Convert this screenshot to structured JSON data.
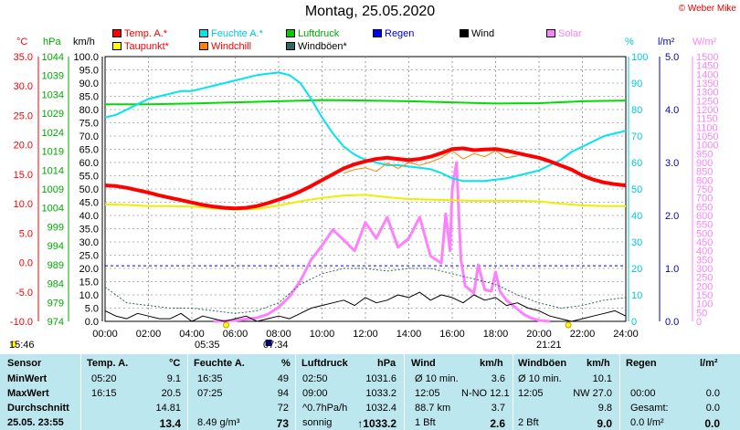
{
  "header": {
    "title": "Montag, 25.05.2020",
    "copyright": "© Weber Mike"
  },
  "legend": [
    {
      "label": "Temp. A.*",
      "color": "#ff0000",
      "col": 0,
      "row": 0
    },
    {
      "label": "Taupunkt*",
      "color": "#ffff00",
      "col": 0,
      "row": 1
    },
    {
      "label": "Feuchte A.*",
      "color": "#00e5ee",
      "col": 1,
      "row": 0
    },
    {
      "label": "Windchill",
      "color": "#ff8000",
      "col": 1,
      "row": 1
    },
    {
      "label": "Luftdruck",
      "color": "#00cc00",
      "col": 2,
      "row": 0
    },
    {
      "label": "Windböen*",
      "color": "#336666",
      "col": 2,
      "row": 1
    },
    {
      "label": "Regen",
      "color": "#0000ff",
      "col": 3,
      "row": 0
    },
    {
      "label": "Wind",
      "color": "#000000",
      "col": 4,
      "row": 0
    },
    {
      "label": "Solar",
      "color": "#ff80ff",
      "col": 5,
      "row": 0
    }
  ],
  "units": {
    "temp": "°C",
    "pressure": "hPa",
    "wind": "km/h",
    "humidity": "%",
    "rain": "l/m²",
    "solar": "W/m²"
  },
  "chart_data": {
    "type": "line",
    "x_ticks": [
      "00:00",
      "02:00",
      "04:00",
      "06:00",
      "08:00",
      "10:00",
      "12:00",
      "14:00",
      "16:00",
      "18:00",
      "20:00",
      "22:00",
      "24:00"
    ],
    "axes": {
      "temp": {
        "min": -10,
        "max": 35,
        "ticks": [
          "35.0",
          "30.0",
          "25.0",
          "20.0",
          "15.0",
          "10.0",
          "5.0",
          "0.0",
          "-5.0",
          "-10.0"
        ]
      },
      "pressure": {
        "min": 974,
        "max": 1044,
        "ticks": [
          "1044",
          "1039",
          "1034",
          "1029",
          "1024",
          "1019",
          "1014",
          "1009",
          "1004",
          "999",
          "994",
          "989",
          "984",
          "979",
          "974"
        ]
      },
      "wind": {
        "min": 0,
        "max": 100,
        "ticks": [
          "100.0",
          "95.0",
          "90.0",
          "85.0",
          "80.0",
          "75.0",
          "70.0",
          "65.0",
          "60.0",
          "55.0",
          "50.0",
          "45.0",
          "40.0",
          "35.0",
          "30.0",
          "25.0",
          "20.0",
          "15.0",
          "10.0",
          "5.0",
          "0.0"
        ]
      },
      "humidity": {
        "min": 0,
        "max": 100,
        "ticks": [
          "100",
          "90",
          "80",
          "70",
          "60",
          "50",
          "40",
          "30",
          "20",
          "10",
          "0"
        ]
      },
      "rain": {
        "min": 0,
        "max": 5,
        "ticks": [
          "5.0",
          "4.0",
          "3.0",
          "2.0",
          "1.0",
          "0.0"
        ]
      },
      "solar": {
        "min": 0,
        "max": 1500,
        "ticks": [
          "1500",
          "1450",
          "1400",
          "1350",
          "1300",
          "1250",
          "1200",
          "1150",
          "1100",
          "1050",
          "1000",
          "950",
          "900",
          "850",
          "800",
          "750",
          "700",
          "650",
          "600",
          "550",
          "500",
          "450",
          "400",
          "350",
          "300",
          "250",
          "200",
          "150",
          "100",
          "50",
          "0"
        ]
      }
    },
    "series": [
      {
        "name": "Feuchte A.*",
        "axis": "humidity",
        "color": "#00e5ee",
        "x": [
          0,
          0.5,
          1,
          1.5,
          2,
          2.5,
          3,
          3.5,
          4,
          4.5,
          5,
          5.5,
          6,
          6.5,
          7,
          7.5,
          8,
          8.5,
          9,
          9.5,
          10,
          10.5,
          11,
          11.5,
          12,
          12.5,
          13,
          13.5,
          14,
          14.5,
          15,
          15.5,
          16,
          16.5,
          17,
          17.5,
          18,
          18.5,
          19,
          19.5,
          20,
          20.5,
          21,
          21.5,
          22,
          22.5,
          23,
          23.5,
          24
        ],
        "y": [
          77,
          78,
          80,
          82,
          84,
          85,
          86,
          87,
          87,
          88,
          89,
          90,
          91,
          92,
          93,
          93.5,
          94,
          93,
          90,
          84,
          77,
          71,
          66,
          63,
          61,
          60,
          59,
          59,
          58.5,
          58,
          57.5,
          56,
          54,
          53,
          53,
          53,
          53.5,
          54,
          55,
          56,
          57,
          59,
          61,
          64,
          66,
          68,
          70,
          71,
          72
        ]
      },
      {
        "name": "Luftdruck",
        "axis": "pressure",
        "color": "#00dd00",
        "x": [
          0,
          2,
          4,
          6,
          8,
          10,
          12,
          14,
          16,
          18,
          20,
          22,
          24
        ],
        "y": [
          1031.4,
          1031.4,
          1031.6,
          1031.9,
          1032.2,
          1032.5,
          1032.4,
          1032.2,
          1031.9,
          1031.6,
          1031.7,
          1032.2,
          1032.4
        ]
      },
      {
        "name": "Temp. A.*",
        "axis": "temp",
        "color": "#ff0000",
        "x": [
          0,
          0.5,
          1,
          1.5,
          2,
          2.5,
          3,
          3.5,
          4,
          4.5,
          5,
          5.5,
          6,
          6.5,
          7,
          7.5,
          8,
          8.5,
          9,
          9.5,
          10,
          10.5,
          11,
          11.5,
          12,
          12.5,
          13,
          13.5,
          14,
          14.5,
          15,
          15.5,
          16,
          16.5,
          17,
          17.5,
          18,
          18.5,
          19,
          19.5,
          20,
          20.5,
          21,
          21.5,
          22,
          22.5,
          23,
          23.5,
          24
        ],
        "y": [
          13.1,
          13.0,
          12.7,
          12.3,
          11.9,
          11.4,
          11.0,
          10.6,
          10.2,
          9.8,
          9.5,
          9.3,
          9.2,
          9.3,
          9.6,
          10.1,
          10.7,
          11.3,
          12.1,
          13.0,
          14.0,
          15.0,
          16.0,
          16.7,
          17.2,
          17.6,
          17.8,
          17.6,
          17.4,
          17.6,
          18.0,
          18.6,
          19.3,
          19.4,
          19.1,
          19.2,
          19.3,
          19.0,
          18.6,
          18.2,
          17.8,
          17.2,
          16.5,
          15.8,
          14.8,
          14.1,
          13.6,
          13.3,
          13.1
        ]
      },
      {
        "name": "Windchill",
        "axis": "temp",
        "color": "#ff8000",
        "x": [
          11,
          11.5,
          12,
          12.5,
          13,
          13.5,
          14,
          14.5,
          15,
          15.5,
          16,
          16.5,
          17,
          17.5,
          18,
          18.5,
          19
        ],
        "y": [
          15.2,
          15.8,
          16.1,
          15.5,
          16.9,
          16.0,
          17.0,
          16.5,
          17.1,
          17.8,
          19.0,
          17.6,
          18.5,
          18.0,
          19.0,
          17.8,
          18.1
        ]
      },
      {
        "name": "Taupunkt*",
        "axis": "temp",
        "color": "#eeee00",
        "x": [
          0,
          1,
          2,
          3,
          4,
          5,
          6,
          7,
          8,
          9,
          10,
          11,
          12,
          13,
          14,
          15,
          16,
          17,
          18,
          19,
          20,
          21,
          22,
          23,
          24
        ],
        "y": [
          9.9,
          9.8,
          9.6,
          9.6,
          9.5,
          9.2,
          9.0,
          9.1,
          9.7,
          10.4,
          11.0,
          11.4,
          11.5,
          11.1,
          10.8,
          10.7,
          10.6,
          10.5,
          10.5,
          10.5,
          10.4,
          10.0,
          9.7,
          9.6,
          9.6
        ]
      },
      {
        "name": "Windböen*",
        "axis": "wind",
        "color": "#336666",
        "dotted": true,
        "x": [
          0,
          1,
          2,
          3,
          4,
          5,
          6,
          7,
          8,
          9,
          10,
          11,
          12,
          13,
          14,
          15,
          16,
          17,
          18,
          19,
          20,
          21,
          22,
          23,
          24
        ],
        "y": [
          13,
          7,
          6,
          5,
          5,
          4,
          3,
          4,
          7,
          14,
          18,
          20,
          20,
          19,
          20,
          20,
          18,
          16,
          14,
          10,
          7,
          5,
          6,
          8,
          9
        ]
      },
      {
        "name": "Wind",
        "axis": "wind",
        "color": "#000000",
        "x": [
          0,
          0.5,
          1,
          1.5,
          2,
          2.5,
          3,
          3.5,
          4,
          4.5,
          5,
          5.5,
          6,
          6.5,
          7,
          7.5,
          8,
          8.5,
          9,
          9.5,
          10,
          10.5,
          11,
          11.5,
          12,
          12.5,
          13,
          13.5,
          14,
          14.5,
          15,
          15.5,
          16,
          16.5,
          17,
          17.5,
          18,
          18.5,
          19,
          19.5,
          20,
          20.5,
          21,
          21.5,
          22,
          22.5,
          23,
          23.5,
          24
        ],
        "y": [
          4,
          2,
          1,
          3,
          2,
          1,
          1,
          3,
          0,
          2,
          1,
          0,
          1,
          2,
          0,
          1,
          2,
          1,
          3,
          5,
          6,
          7,
          8,
          6,
          9,
          7,
          8,
          10,
          9,
          11,
          8,
          10,
          9,
          7,
          10,
          8,
          9,
          6,
          7,
          5,
          4,
          2,
          1,
          0,
          1,
          2,
          3,
          4,
          2
        ]
      },
      {
        "name": "Solar",
        "axis": "solar",
        "color": "#ff80ff",
        "x": [
          5,
          6,
          7,
          7.5,
          8,
          8.5,
          9,
          9.5,
          10,
          10.5,
          11,
          11.5,
          12,
          12.5,
          13,
          13.5,
          14,
          14.5,
          15,
          15.5,
          15.7,
          15.9,
          16,
          16.2,
          16.4,
          16.6,
          16.8,
          17,
          17.2,
          17.5,
          17.8,
          18,
          18.2,
          18.5,
          19,
          19.3,
          19.6,
          20,
          20.5
        ],
        "y": [
          0,
          5,
          20,
          40,
          80,
          140,
          230,
          350,
          430,
          520,
          460,
          400,
          560,
          470,
          590,
          420,
          470,
          590,
          370,
          330,
          610,
          400,
          750,
          900,
          350,
          200,
          180,
          160,
          320,
          180,
          170,
          280,
          170,
          120,
          70,
          40,
          20,
          5,
          0
        ]
      }
    ],
    "rain_level_ls": 1.05
  },
  "time_markers": {
    "left_time": "15:46",
    "sunrise": "05:35",
    "moon": "07:34",
    "sunset": "21:21"
  },
  "table": {
    "headers": [
      "Sensor",
      "Temp. A.",
      "°C",
      "Feuchte A.",
      "%",
      "Luftdruck",
      "hPa",
      "Wind",
      "km/h",
      "Windböen",
      "km/h",
      "Regen",
      "l/m²"
    ],
    "rows": [
      {
        "label": "MinWert",
        "t_time": "05:20",
        "t_val": "9.1",
        "h_time": "16:35",
        "h_val": "49",
        "p_time": "02:50",
        "p_val": "1031.6",
        "w_label": "Ø 10 min.",
        "w_val": "3.6",
        "g_label": "Ø 10 min.",
        "g_val": "10.1",
        "r_label": "",
        "r_val": ""
      },
      {
        "label": "MaxWert",
        "t_time": "16:15",
        "t_val": "20.5",
        "h_time": "07:25",
        "h_val": "94",
        "p_time": "09:00",
        "p_val": "1033.2",
        "w_label": "12:05",
        "w_dir": "N-NO 12.1",
        "g_label": "12:05",
        "g_val": "NW 27.0",
        "r_label": "00:00",
        "r_val": "0.0"
      },
      {
        "label": "Durchschnitt",
        "t_time": "",
        "t_val": "14.81",
        "h_time": "",
        "h_val": "72",
        "p_time": "^0.7hPa/h",
        "p_val": "1032.4",
        "w_label": "88.7 km",
        "w_val": "3.7",
        "g_label": "",
        "g_val": "9.8",
        "r_label": "Gesamt:",
        "r_val": "0.0"
      },
      {
        "label": "25.05. 23:55",
        "t_time": "",
        "t_val": "13.4",
        "h_time": "8.49 g/m³",
        "h_val": "73",
        "p_time": "sonnig",
        "p_val": "↑1033.2",
        "w_label": "1 Bft",
        "w_val": "2.6",
        "g_label": "2 Bft",
        "g_val": "9.0",
        "r_label": "0.0 l/m²",
        "r_val": "0.0"
      }
    ]
  }
}
